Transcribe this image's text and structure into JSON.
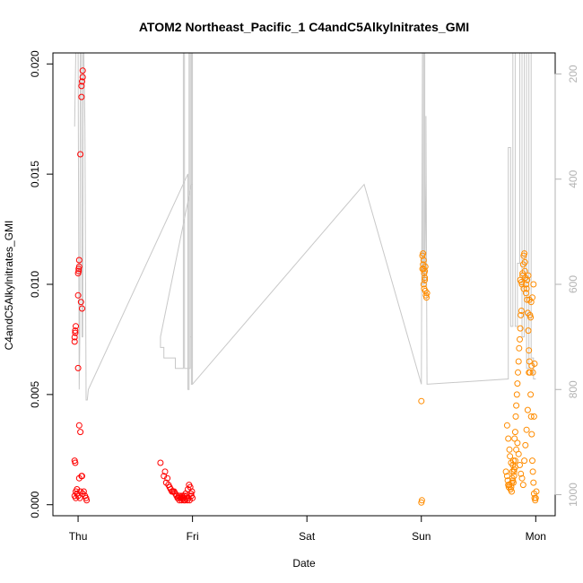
{
  "chart_data": {
    "type": "scatter",
    "title": "ATOM2 Northeast_Pacific_1 C4andC5Alkylnitrates_GMI",
    "xlabel": "Date",
    "ylabel": "C4andC5Alkylnitrates_GMI",
    "x_unit": "days since Thu 00:00",
    "xlim": [
      -0.22,
      4.17
    ],
    "ylim": [
      -0.0005,
      0.0205
    ],
    "y_ticks": [
      0.0,
      0.005,
      0.01,
      0.015,
      0.02
    ],
    "y_tick_labels": [
      "0.000",
      "0.005",
      "0.010",
      "0.015",
      "0.020"
    ],
    "x_ticks": [
      0,
      1,
      2,
      3,
      4
    ],
    "x_tick_labels": [
      "Thu",
      "Fri",
      "Sat",
      "Sun",
      "Mon"
    ],
    "right_axis": {
      "label": "",
      "ticks": [
        200,
        400,
        600,
        800,
        1000
      ],
      "ylim": [
        1040,
        160
      ],
      "color": "#b3b3b3",
      "reversed": true
    },
    "grid": false,
    "series": [
      {
        "color": "#ff0000",
        "marker": "open-circle",
        "points": [
          [
            -0.03,
            0.0074
          ],
          [
            -0.03,
            0.0076
          ],
          [
            -0.025,
            0.0078
          ],
          [
            -0.025,
            0.0079
          ],
          [
            -0.02,
            0.0081
          ],
          [
            -0.03,
            0.002
          ],
          [
            -0.025,
            0.0019
          ],
          [
            -0.03,
            0.0004
          ],
          [
            -0.02,
            0.0003
          ],
          [
            -0.02,
            0.0006
          ],
          [
            -0.01,
            0.0007
          ],
          [
            -0.01,
            0.0005
          ],
          [
            0.0,
            0.0095
          ],
          [
            0.0,
            0.0105
          ],
          [
            0.005,
            0.0106
          ],
          [
            0.005,
            0.0107
          ],
          [
            0.01,
            0.0108
          ],
          [
            0.01,
            0.0111
          ],
          [
            0.0,
            0.0062
          ],
          [
            0.01,
            0.0036
          ],
          [
            0.02,
            0.0033
          ],
          [
            0.02,
            0.0159
          ],
          [
            0.03,
            0.0185
          ],
          [
            0.03,
            0.019
          ],
          [
            0.035,
            0.0192
          ],
          [
            0.04,
            0.0194
          ],
          [
            0.04,
            0.0197
          ],
          [
            0.025,
            0.0092
          ],
          [
            0.035,
            0.0089
          ],
          [
            0.01,
            0.0012
          ],
          [
            0.02,
            0.0006
          ],
          [
            0.03,
            0.0013
          ],
          [
            0.035,
            0.0013
          ],
          [
            0.04,
            0.0005
          ],
          [
            0.05,
            0.0006
          ],
          [
            0.06,
            0.0004
          ],
          [
            0.07,
            0.0003
          ],
          [
            0.075,
            0.0002
          ],
          [
            0.0,
            0.0004
          ],
          [
            0.015,
            0.0003
          ],
          [
            0.72,
            0.0019
          ],
          [
            0.75,
            0.0013
          ],
          [
            0.76,
            0.0015
          ],
          [
            0.78,
            0.0012
          ],
          [
            0.77,
            0.001
          ],
          [
            0.79,
            0.0009
          ],
          [
            0.8,
            0.0008
          ],
          [
            0.81,
            0.0007
          ],
          [
            0.82,
            0.0006
          ],
          [
            0.83,
            0.0006
          ],
          [
            0.84,
            0.0006
          ],
          [
            0.85,
            0.0005
          ],
          [
            0.86,
            0.0004
          ],
          [
            0.87,
            0.0003
          ],
          [
            0.88,
            0.0004
          ],
          [
            0.89,
            0.0004
          ],
          [
            0.9,
            0.0003
          ],
          [
            0.91,
            0.0004
          ],
          [
            0.92,
            0.0003
          ],
          [
            0.93,
            0.0004
          ],
          [
            0.94,
            0.0005
          ],
          [
            0.95,
            0.0004
          ],
          [
            0.96,
            0.0007
          ],
          [
            0.97,
            0.0009
          ],
          [
            0.98,
            0.0008
          ],
          [
            0.99,
            0.0004
          ],
          [
            1.0,
            0.0003
          ],
          [
            0.995,
            0.0006
          ],
          [
            0.985,
            0.0005
          ],
          [
            0.975,
            0.0002
          ],
          [
            0.965,
            0.0003
          ],
          [
            0.955,
            0.0002
          ],
          [
            0.945,
            0.0003
          ],
          [
            0.935,
            0.0002
          ],
          [
            0.925,
            0.0002
          ],
          [
            0.915,
            0.0003
          ],
          [
            0.905,
            0.0002
          ],
          [
            0.895,
            0.0003
          ],
          [
            0.885,
            0.0002
          ],
          [
            0.875,
            0.0003
          ]
        ]
      },
      {
        "color": "#ff8c00",
        "marker": "open-circle",
        "points": [
          [
            3.0,
            0.0047
          ],
          [
            3.0,
            0.0001
          ],
          [
            3.005,
            0.0002
          ],
          [
            3.01,
            0.0107
          ],
          [
            3.01,
            0.0113
          ],
          [
            3.015,
            0.0114
          ],
          [
            3.02,
            0.0111
          ],
          [
            3.025,
            0.0105
          ],
          [
            3.03,
            0.0103
          ],
          [
            3.035,
            0.0108
          ],
          [
            3.02,
            0.01
          ],
          [
            3.025,
            0.0098
          ],
          [
            3.03,
            0.0102
          ],
          [
            3.035,
            0.0097
          ],
          [
            3.04,
            0.0095
          ],
          [
            3.045,
            0.0094
          ],
          [
            3.05,
            0.0096
          ],
          [
            3.015,
            0.0109
          ],
          [
            3.02,
            0.0107
          ],
          [
            3.03,
            0.0106
          ],
          [
            3.75,
            0.0036
          ],
          [
            3.76,
            0.003
          ],
          [
            3.77,
            0.0025
          ],
          [
            3.74,
            0.0015
          ],
          [
            3.75,
            0.0013
          ],
          [
            3.755,
            0.0011
          ],
          [
            3.76,
            0.0009
          ],
          [
            3.765,
            0.0008
          ],
          [
            3.77,
            0.0009
          ],
          [
            3.78,
            0.0007
          ],
          [
            3.785,
            0.0008
          ],
          [
            3.79,
            0.001
          ],
          [
            3.795,
            0.0015
          ],
          [
            3.8,
            0.0018
          ],
          [
            3.805,
            0.002
          ],
          [
            3.81,
            0.0013
          ],
          [
            3.815,
            0.003
          ],
          [
            3.82,
            0.0033
          ],
          [
            3.825,
            0.004
          ],
          [
            3.83,
            0.0045
          ],
          [
            3.835,
            0.005
          ],
          [
            3.84,
            0.0055
          ],
          [
            3.845,
            0.006
          ],
          [
            3.85,
            0.0065
          ],
          [
            3.855,
            0.0071
          ],
          [
            3.86,
            0.0075
          ],
          [
            3.865,
            0.008
          ],
          [
            3.87,
            0.0086
          ],
          [
            3.875,
            0.0088
          ],
          [
            3.88,
            0.01
          ],
          [
            3.885,
            0.0105
          ],
          [
            3.89,
            0.0109
          ],
          [
            3.895,
            0.0113
          ],
          [
            3.9,
            0.0114
          ],
          [
            3.905,
            0.011
          ],
          [
            3.91,
            0.0103
          ],
          [
            3.915,
            0.01
          ],
          [
            3.92,
            0.0098
          ],
          [
            3.925,
            0.0093
          ],
          [
            3.93,
            0.0087
          ],
          [
            3.935,
            0.0079
          ],
          [
            3.94,
            0.007
          ],
          [
            3.945,
            0.0065
          ],
          [
            3.95,
            0.006
          ],
          [
            3.955,
            0.005
          ],
          [
            3.96,
            0.004
          ],
          [
            3.965,
            0.0032
          ],
          [
            3.97,
            0.002
          ],
          [
            3.975,
            0.0015
          ],
          [
            3.98,
            0.001
          ],
          [
            3.985,
            0.0005
          ],
          [
            3.99,
            0.0003
          ],
          [
            3.995,
            0.0002
          ],
          [
            4.0,
            0.0003
          ],
          [
            4.005,
            0.0006
          ],
          [
            3.81,
            0.0016
          ],
          [
            3.82,
            0.002
          ],
          [
            3.83,
            0.0025
          ],
          [
            3.84,
            0.0028
          ],
          [
            3.85,
            0.0023
          ],
          [
            3.86,
            0.0018
          ],
          [
            3.87,
            0.0014
          ],
          [
            3.88,
            0.0012
          ],
          [
            3.89,
            0.0009
          ],
          [
            3.9,
            0.002
          ],
          [
            3.91,
            0.0027
          ],
          [
            3.92,
            0.0034
          ],
          [
            3.93,
            0.0043
          ],
          [
            3.94,
            0.006
          ],
          [
            3.95,
            0.0086
          ],
          [
            3.96,
            0.0092
          ],
          [
            3.97,
            0.0094
          ],
          [
            3.98,
            0.01
          ],
          [
            3.99,
            0.0064
          ],
          [
            3.985,
            0.004
          ],
          [
            3.865,
            0.0102
          ],
          [
            3.875,
            0.0101
          ],
          [
            3.885,
            0.0104
          ],
          [
            3.895,
            0.0098
          ],
          [
            3.905,
            0.0106
          ],
          [
            3.915,
            0.0096
          ],
          [
            3.925,
            0.0102
          ],
          [
            3.935,
            0.0104
          ],
          [
            3.945,
            0.0093
          ],
          [
            3.955,
            0.0085
          ],
          [
            3.965,
            0.0063
          ],
          [
            3.975,
            0.006
          ],
          [
            3.775,
            0.0022
          ],
          [
            3.785,
            0.0019
          ],
          [
            3.795,
            0.0012
          ],
          [
            3.805,
            0.001
          ],
          [
            3.79,
            0.0006
          ],
          [
            3.8,
            0.0011
          ],
          [
            3.81,
            0.0015
          ],
          [
            3.82,
            0.0017
          ]
        ]
      }
    ],
    "line_series": {
      "color": "#c8c8c8",
      "axis": "right",
      "points": [
        [
          -0.03,
          300
        ],
        [
          -0.02,
          160
        ],
        [
          0.0,
          160
        ],
        [
          0.005,
          500
        ],
        [
          0.01,
          800
        ],
        [
          0.015,
          700
        ],
        [
          0.02,
          160
        ],
        [
          0.03,
          160
        ],
        [
          0.035,
          700
        ],
        [
          0.04,
          700
        ],
        [
          0.045,
          160
        ],
        [
          0.05,
          160
        ],
        [
          0.06,
          300
        ],
        [
          0.07,
          820
        ],
        [
          0.08,
          820
        ],
        [
          0.09,
          800
        ],
        [
          0.96,
          390
        ],
        [
          0.96,
          800
        ],
        [
          0.97,
          800
        ],
        [
          0.97,
          160
        ],
        [
          0.98,
          160
        ],
        [
          0.98,
          700
        ],
        [
          0.99,
          700
        ],
        [
          0.99,
          160
        ],
        [
          1.0,
          160
        ],
        [
          1.0,
          790
        ],
        [
          1.0,
          410
        ],
        [
          0.99,
          410
        ],
        [
          0.72,
          700
        ],
        [
          0.72,
          720
        ],
        [
          0.75,
          720
        ],
        [
          0.75,
          740
        ],
        [
          0.85,
          740
        ],
        [
          0.85,
          760
        ],
        [
          0.92,
          760
        ],
        [
          0.92,
          160
        ],
        [
          0.93,
          160
        ],
        [
          0.93,
          760
        ],
        [
          0.98,
          760
        ],
        [
          0.98,
          160
        ],
        [
          0.99,
          160
        ],
        [
          0.99,
          790
        ],
        [
          1.0,
          790
        ],
        [
          2.5,
          410
        ],
        [
          3.0,
          790
        ],
        [
          3.0,
          790
        ],
        [
          3.01,
          160
        ],
        [
          3.01,
          600
        ],
        [
          3.02,
          600
        ],
        [
          3.02,
          160
        ],
        [
          3.03,
          160
        ],
        [
          3.03,
          600
        ],
        [
          3.04,
          400
        ],
        [
          3.04,
          280
        ],
        [
          3.05,
          790
        ],
        [
          3.76,
          780
        ],
        [
          3.76,
          340
        ],
        [
          3.78,
          340
        ],
        [
          3.78,
          680
        ],
        [
          3.8,
          680
        ],
        [
          3.8,
          160
        ],
        [
          3.82,
          160
        ],
        [
          3.82,
          680
        ],
        [
          3.84,
          680
        ],
        [
          3.84,
          560
        ],
        [
          3.86,
          560
        ],
        [
          3.86,
          160
        ],
        [
          3.88,
          160
        ],
        [
          3.88,
          700
        ],
        [
          3.9,
          700
        ],
        [
          3.9,
          160
        ],
        [
          3.92,
          160
        ],
        [
          3.92,
          760
        ],
        [
          3.94,
          760
        ],
        [
          3.94,
          160
        ],
        [
          3.96,
          160
        ],
        [
          3.96,
          740
        ],
        [
          3.98,
          740
        ],
        [
          3.98,
          780
        ],
        [
          4.0,
          780
        ]
      ]
    }
  }
}
